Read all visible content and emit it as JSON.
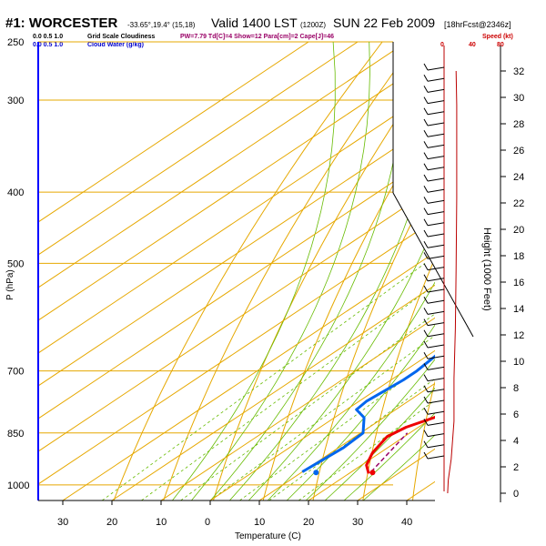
{
  "header": {
    "station": "#1: WORCESTER",
    "coords": "-33.65°,19.4° (15,18)",
    "valid": "Valid 1400 LST",
    "valid_utc": "(1200Z)",
    "date": "SUN 22 Feb 2009",
    "forecast": "[18hrFcst@2346z]"
  },
  "legend": {
    "cloud_scale_values": "0.0   0.5   1.0",
    "cloud_scale_label": "Grid Scale Cloudiness",
    "cloud_water_values": "0.0   0.5   1.0",
    "cloud_water_label": "Cloud Water (g/kg)",
    "indices": "PW=7.79 Td[C]=4 Show=12 Para[cm]=2 Cape[J]=46",
    "speed_label": "Speed (kt)",
    "speed_ticks": [
      "0",
      "40",
      "80"
    ]
  },
  "colors": {
    "temperature": "#ee0000",
    "dewpoint": "#0066ee",
    "isotherm": "#e6a800",
    "mixing_ratio": "#66bb00",
    "parcel": "#990066",
    "wind_speed": "#bb0000"
  },
  "chart_data": {
    "type": "line",
    "title": "#1: WORCESTER  Valid 1400 LST SUN 22 Feb 2009",
    "xlabel": "Temperature (C)",
    "ylabel": "P (hPa)",
    "right_ylabel": "Height (1000 Feet)",
    "xlim": [
      -35,
      45
    ],
    "ylim": [
      1050,
      250
    ],
    "y_scale": "log",
    "grid": true,
    "x_ticks": [
      "30",
      "20",
      "10",
      "0",
      "10",
      "20",
      "30",
      "40"
    ],
    "pressure_ticks": [
      "250",
      "300",
      "400",
      "500",
      "700",
      "850",
      "1000"
    ],
    "height_ticks": [
      "0",
      "2",
      "4",
      "6",
      "8",
      "10",
      "12",
      "14",
      "16",
      "18",
      "20",
      "22",
      "24",
      "26",
      "28",
      "30",
      "32"
    ],
    "series": [
      {
        "name": "Temperature",
        "values": [
          [
            24.0,
            965
          ],
          [
            21.0,
            940
          ],
          [
            18.5,
            905
          ],
          [
            16.5,
            860
          ],
          [
            17.5,
            835
          ],
          [
            20.5,
            808
          ],
          [
            21.5,
            785
          ],
          [
            21.0,
            700
          ],
          [
            20.0,
            600
          ],
          [
            18.0,
            540
          ],
          [
            15.5,
            500
          ],
          [
            12.5,
            460
          ],
          [
            9.5,
            420
          ],
          [
            6.5,
            385
          ],
          [
            3.5,
            350
          ],
          [
            0.5,
            320
          ],
          [
            -2.0,
            292
          ],
          [
            -4.5,
            268
          ]
        ]
      },
      {
        "name": "Dewpoint",
        "values": [
          [
            10.0,
            960
          ],
          [
            11.0,
            890
          ],
          [
            10.5,
            850
          ],
          [
            6.0,
            810
          ],
          [
            2.0,
            790
          ],
          [
            1.5,
            770
          ],
          [
            2.5,
            720
          ],
          [
            2.5,
            700
          ],
          [
            1.0,
            640
          ],
          [
            -1.5,
            580
          ],
          [
            -4.5,
            520
          ],
          [
            -7.5,
            475
          ],
          [
            -11.0,
            440
          ],
          [
            -14.5,
            405
          ],
          [
            -16.0,
            375
          ],
          [
            -15.0,
            345
          ],
          [
            -13.0,
            320
          ],
          [
            -12.5,
            300
          ],
          [
            -15.0,
            280
          ],
          [
            -18.0,
            262
          ]
        ]
      },
      {
        "name": "Parcel",
        "values": [
          [
            24.0,
            960
          ],
          [
            19.5,
            850
          ]
        ]
      },
      {
        "name": "Wind Speed",
        "values": [
          [
            5,
            1000
          ],
          [
            6,
            960
          ],
          [
            10,
            900
          ],
          [
            12,
            850
          ],
          [
            14,
            800
          ],
          [
            14,
            700
          ],
          [
            16,
            600
          ],
          [
            17,
            500
          ],
          [
            18,
            400
          ],
          [
            18,
            350
          ],
          [
            18,
            300
          ],
          [
            17,
            270
          ]
        ]
      }
    ],
    "surface_points": [
      {
        "name": "Temperature",
        "x": 24.5,
        "p": 962
      },
      {
        "name": "Dewpoint",
        "x": 13.0,
        "p": 962
      }
    ],
    "isotherm_labels": [
      "-10",
      "0",
      "10",
      "20",
      "30",
      "-20",
      "-30",
      "-40",
      "0",
      "10"
    ],
    "mixing_ratio_labels": [
      "1",
      "2",
      "4",
      "6",
      "10",
      "15",
      "20"
    ]
  }
}
